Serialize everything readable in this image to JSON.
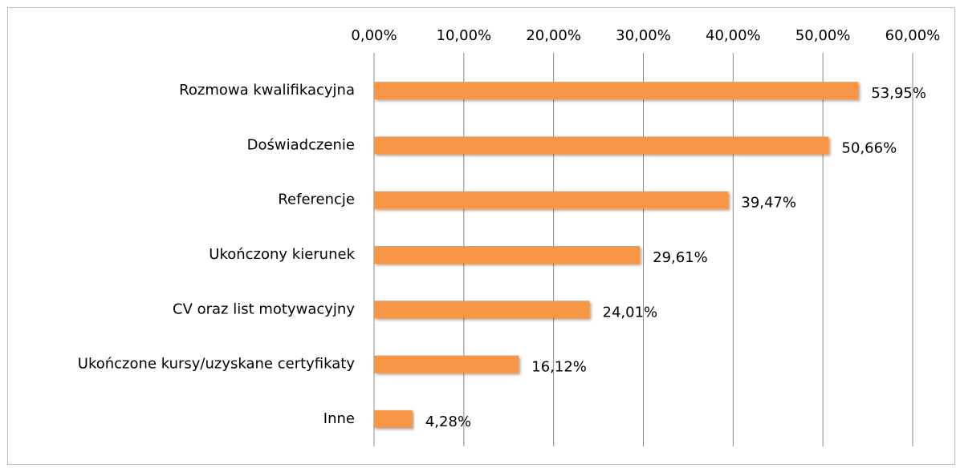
{
  "chart_data": {
    "type": "bar",
    "orientation": "horizontal",
    "categories": [
      "Rozmowa kwalifikacyjna",
      "Doświadczenie",
      "Referencje",
      "Ukończony kierunek",
      "CV oraz list motywacyjny",
      "Ukończone kursy/uzyskane certyfikaty",
      "Inne"
    ],
    "values": [
      53.95,
      50.66,
      39.47,
      29.61,
      24.01,
      16.12,
      4.28
    ],
    "value_labels": [
      "53,95%",
      "50,66%",
      "39,47%",
      "29,61%",
      "24,01%",
      "16,12%",
      "4,28%"
    ],
    "color": "#f79646",
    "xlim": [
      0,
      60
    ],
    "xticks": [
      {
        "value": 0,
        "label": "0,00%"
      },
      {
        "value": 10,
        "label": "10,00%"
      },
      {
        "value": 20,
        "label": "20,00%"
      },
      {
        "value": 30,
        "label": "30,00%"
      },
      {
        "value": 40,
        "label": "40,00%"
      },
      {
        "value": 50,
        "label": "50,00%"
      },
      {
        "value": 60,
        "label": "60,00%"
      }
    ],
    "grid": true
  }
}
